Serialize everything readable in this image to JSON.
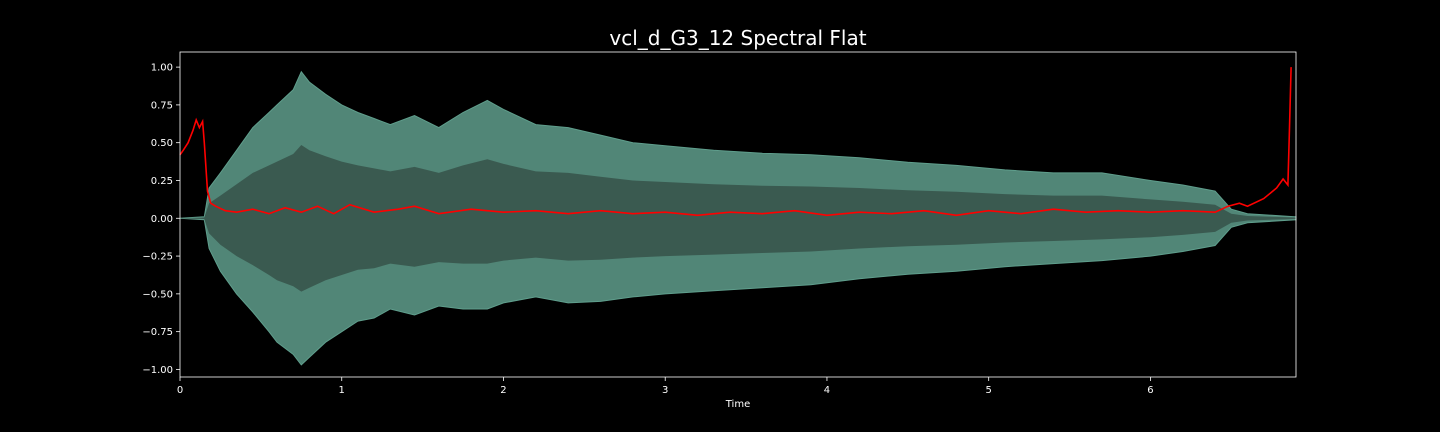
{
  "chart_data": {
    "type": "line",
    "title": "vcl_d_G3_12 Spectral Flat",
    "xlabel": "Time",
    "ylabel": "",
    "xlim": [
      0,
      6.9
    ],
    "ylim": [
      -1.05,
      1.1
    ],
    "x_ticks": [
      0,
      1,
      2,
      3,
      4,
      5,
      6
    ],
    "y_ticks": [
      1.0,
      0.75,
      0.5,
      0.25,
      0.0,
      -0.25,
      -0.5,
      -0.75,
      -1.0
    ],
    "x_tick_labels": [
      "0",
      "1",
      "2",
      "3",
      "4",
      "5",
      "6"
    ],
    "y_tick_labels": [
      "1.00",
      "0.75",
      "0.50",
      "0.25",
      "0.00",
      "−0.25",
      "−0.50",
      "−0.75",
      "−1.00"
    ],
    "grid": false,
    "colors": {
      "background": "#000000",
      "axes_frame": "#ffffff",
      "waveform": "#5f9e8c",
      "waveform_core": "#3a5a50",
      "spectral_flatness": "#ff0000"
    },
    "series": [
      {
        "kind": "waveform",
        "x": [
          0,
          0.15,
          0.18,
          0.25,
          0.35,
          0.45,
          0.55,
          0.6,
          0.7,
          0.75,
          0.8,
          0.9,
          1.0,
          1.1,
          1.2,
          1.3,
          1.45,
          1.6,
          1.75,
          1.9,
          2.0,
          2.2,
          2.4,
          2.6,
          2.8,
          3.0,
          3.3,
          3.6,
          3.9,
          4.2,
          4.5,
          4.8,
          5.1,
          5.4,
          5.7,
          6.0,
          6.2,
          6.4,
          6.5,
          6.6,
          6.9
        ],
        "upper": [
          0.0,
          0.01,
          0.2,
          0.3,
          0.45,
          0.6,
          0.7,
          0.75,
          0.85,
          0.97,
          0.9,
          0.82,
          0.75,
          0.7,
          0.66,
          0.62,
          0.68,
          0.6,
          0.7,
          0.78,
          0.72,
          0.62,
          0.6,
          0.55,
          0.5,
          0.48,
          0.45,
          0.43,
          0.42,
          0.4,
          0.37,
          0.35,
          0.32,
          0.3,
          0.3,
          0.25,
          0.22,
          0.18,
          0.06,
          0.03,
          0.01
        ],
        "lower": [
          0.0,
          -0.01,
          -0.2,
          -0.35,
          -0.5,
          -0.62,
          -0.75,
          -0.82,
          -0.9,
          -0.97,
          -0.92,
          -0.82,
          -0.75,
          -0.68,
          -0.66,
          -0.6,
          -0.64,
          -0.58,
          -0.6,
          -0.6,
          -0.56,
          -0.52,
          -0.56,
          -0.55,
          -0.52,
          -0.5,
          -0.48,
          -0.46,
          -0.44,
          -0.4,
          -0.37,
          -0.35,
          -0.32,
          -0.3,
          -0.28,
          -0.25,
          -0.22,
          -0.18,
          -0.06,
          -0.03,
          -0.01
        ]
      },
      {
        "kind": "spectral_flatness",
        "x": [
          0.0,
          0.02,
          0.05,
          0.08,
          0.1,
          0.12,
          0.14,
          0.15,
          0.17,
          0.19,
          0.22,
          0.28,
          0.35,
          0.45,
          0.55,
          0.65,
          0.75,
          0.85,
          0.95,
          1.05,
          1.2,
          1.35,
          1.45,
          1.6,
          1.8,
          2.0,
          2.2,
          2.4,
          2.6,
          2.8,
          3.0,
          3.2,
          3.4,
          3.6,
          3.8,
          4.0,
          4.2,
          4.4,
          4.6,
          4.8,
          5.0,
          5.2,
          5.4,
          5.6,
          5.8,
          6.0,
          6.2,
          6.4,
          6.48,
          6.55,
          6.6,
          6.7,
          6.78,
          6.82,
          6.85,
          6.86,
          6.87
        ],
        "values": [
          0.42,
          0.45,
          0.5,
          0.58,
          0.65,
          0.6,
          0.64,
          0.5,
          0.18,
          0.1,
          0.08,
          0.05,
          0.04,
          0.06,
          0.03,
          0.07,
          0.04,
          0.08,
          0.03,
          0.09,
          0.04,
          0.06,
          0.08,
          0.03,
          0.06,
          0.04,
          0.05,
          0.03,
          0.05,
          0.03,
          0.04,
          0.02,
          0.04,
          0.03,
          0.05,
          0.02,
          0.04,
          0.03,
          0.05,
          0.02,
          0.05,
          0.03,
          0.06,
          0.04,
          0.05,
          0.04,
          0.05,
          0.04,
          0.08,
          0.1,
          0.08,
          0.13,
          0.2,
          0.26,
          0.22,
          0.6,
          1.0
        ]
      }
    ]
  }
}
